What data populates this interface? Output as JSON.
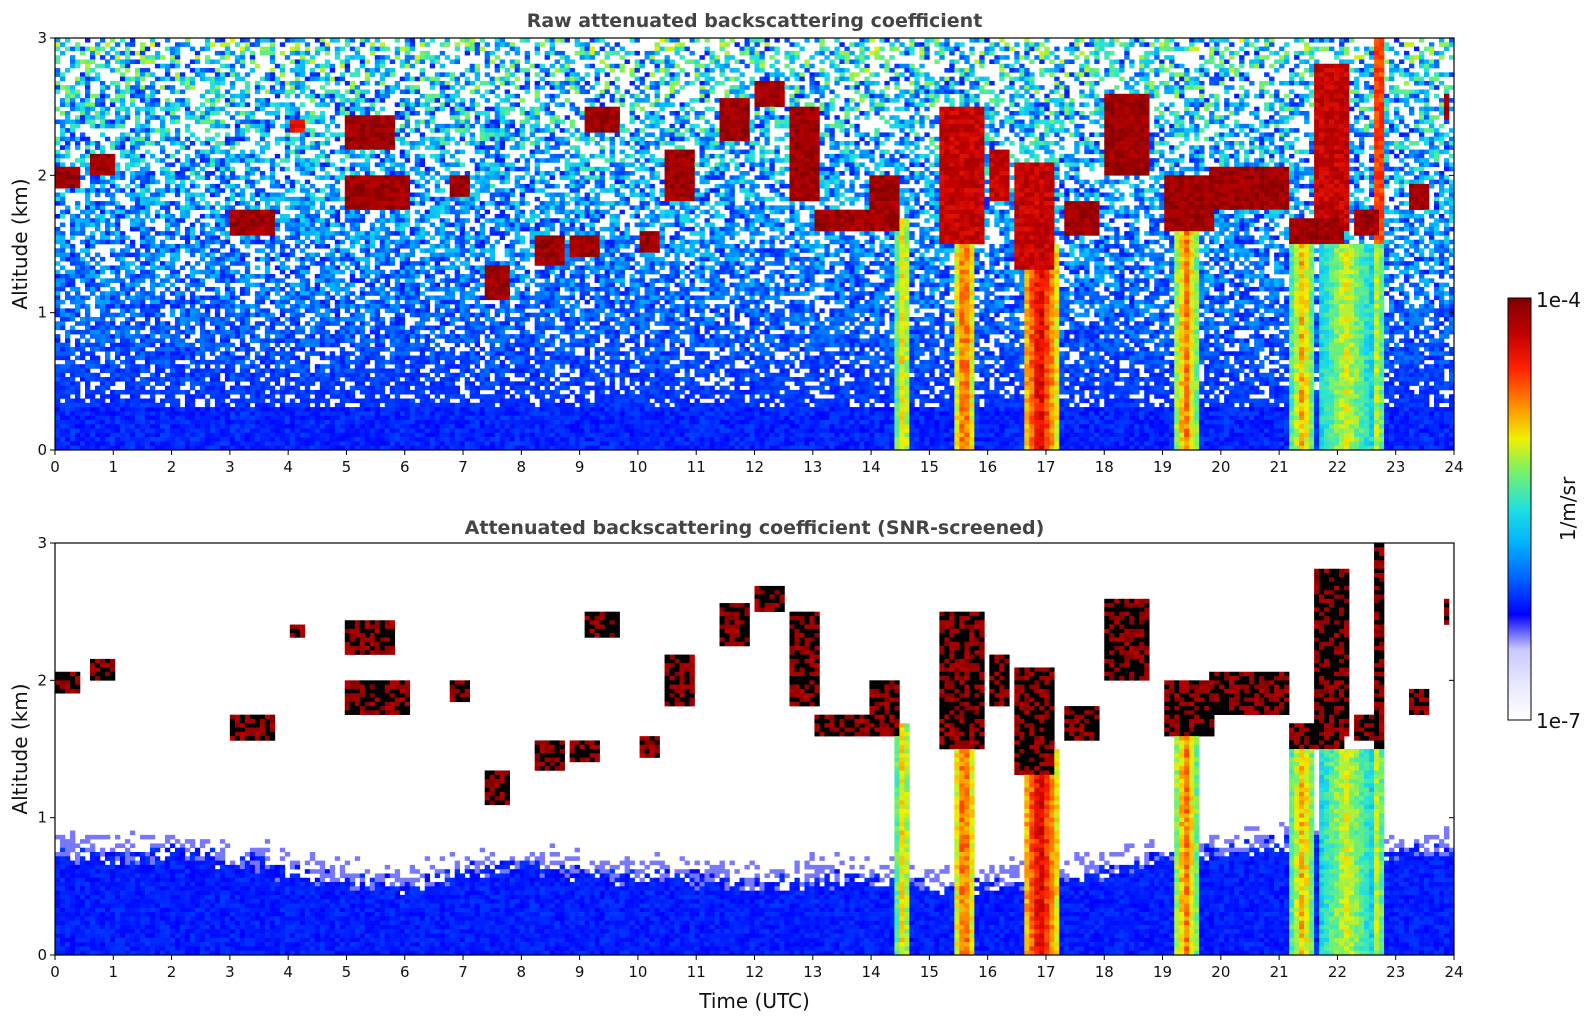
{
  "colors": {
    "colormap": [
      "#ffffff",
      "#e8e8ff",
      "#c8c8ff",
      "#0000ff",
      "#0060ff",
      "#00b0ff",
      "#20e0e0",
      "#70f070",
      "#f0f000",
      "#ff8800",
      "#ff2000",
      "#c00000",
      "#800000"
    ]
  },
  "colorbar": {
    "max_label": "1e-4",
    "min_label": "1e-7",
    "unit_label": "1/m/sr",
    "scale": "log"
  },
  "chart_data": [
    {
      "type": "heatmap",
      "title": "Raw attenuated backscattering coefficient",
      "xlabel": "",
      "ylabel": "Altitude (km)",
      "xlim": [
        0,
        24
      ],
      "ylim": [
        0,
        3
      ],
      "x_ticks": [
        "0",
        "1",
        "2",
        "3",
        "4",
        "5",
        "6",
        "7",
        "8",
        "9",
        "10",
        "11",
        "12",
        "13",
        "14",
        "15",
        "16",
        "17",
        "18",
        "19",
        "20",
        "21",
        "22",
        "23",
        "24"
      ],
      "y_ticks": [
        "0",
        "1",
        "2",
        "3"
      ],
      "grid": false,
      "background_noise": "high",
      "cloud_features": [
        {
          "x_start": 0.0,
          "x_end": 0.4,
          "alt_bottom": 1.9,
          "alt_top": 2.05,
          "level": 1.0
        },
        {
          "x_start": 0.6,
          "x_end": 1.0,
          "alt_bottom": 2.0,
          "alt_top": 2.15,
          "level": 1.0
        },
        {
          "x_start": 3.0,
          "x_end": 3.8,
          "alt_bottom": 1.55,
          "alt_top": 1.75,
          "level": 1.0
        },
        {
          "x_start": 4.0,
          "x_end": 4.3,
          "alt_bottom": 2.3,
          "alt_top": 2.4,
          "level": 0.9
        },
        {
          "x_start": 5.0,
          "x_end": 5.8,
          "alt_bottom": 2.2,
          "alt_top": 2.45,
          "level": 1.0
        },
        {
          "x_start": 5.0,
          "x_end": 6.1,
          "alt_bottom": 1.75,
          "alt_top": 2.0,
          "level": 1.0
        },
        {
          "x_start": 6.8,
          "x_end": 7.1,
          "alt_bottom": 1.85,
          "alt_top": 2.0,
          "level": 1.0
        },
        {
          "x_start": 7.4,
          "x_end": 7.8,
          "alt_bottom": 1.1,
          "alt_top": 1.35,
          "level": 1.0
        },
        {
          "x_start": 8.2,
          "x_end": 8.7,
          "alt_bottom": 1.35,
          "alt_top": 1.55,
          "level": 1.0
        },
        {
          "x_start": 8.8,
          "x_end": 9.3,
          "alt_bottom": 1.4,
          "alt_top": 1.55,
          "level": 1.0
        },
        {
          "x_start": 9.1,
          "x_end": 9.7,
          "alt_bottom": 2.3,
          "alt_top": 2.5,
          "level": 1.0
        },
        {
          "x_start": 10.0,
          "x_end": 10.4,
          "alt_bottom": 1.45,
          "alt_top": 1.6,
          "level": 1.0
        },
        {
          "x_start": 10.5,
          "x_end": 11.0,
          "alt_bottom": 1.8,
          "alt_top": 2.2,
          "level": 1.0
        },
        {
          "x_start": 11.4,
          "x_end": 11.9,
          "alt_bottom": 2.25,
          "alt_top": 2.55,
          "level": 1.0
        },
        {
          "x_start": 12.0,
          "x_end": 12.5,
          "alt_bottom": 2.5,
          "alt_top": 2.7,
          "level": 1.0
        },
        {
          "x_start": 12.6,
          "x_end": 13.1,
          "alt_bottom": 1.8,
          "alt_top": 2.5,
          "level": 1.0
        },
        {
          "x_start": 13.0,
          "x_end": 14.0,
          "alt_bottom": 1.6,
          "alt_top": 1.75,
          "level": 1.0
        },
        {
          "x_start": 14.0,
          "x_end": 14.5,
          "alt_bottom": 1.6,
          "alt_top": 2.0,
          "level": 1.0
        },
        {
          "x_start": 15.2,
          "x_end": 15.9,
          "alt_bottom": 1.5,
          "alt_top": 2.5,
          "level": 0.95
        },
        {
          "x_start": 16.0,
          "x_end": 16.4,
          "alt_bottom": 1.8,
          "alt_top": 2.2,
          "level": 0.95
        },
        {
          "x_start": 16.5,
          "x_end": 17.1,
          "alt_bottom": 1.3,
          "alt_top": 2.1,
          "level": 0.95
        },
        {
          "x_start": 17.3,
          "x_end": 17.9,
          "alt_bottom": 1.55,
          "alt_top": 1.8,
          "level": 1.0
        },
        {
          "x_start": 18.0,
          "x_end": 18.8,
          "alt_bottom": 2.0,
          "alt_top": 2.6,
          "level": 1.0
        },
        {
          "x_start": 19.0,
          "x_end": 19.9,
          "alt_bottom": 1.6,
          "alt_top": 2.0,
          "level": 1.0
        },
        {
          "x_start": 19.8,
          "x_end": 21.2,
          "alt_bottom": 1.75,
          "alt_top": 2.05,
          "level": 1.0
        },
        {
          "x_start": 21.2,
          "x_end": 22.1,
          "alt_bottom": 1.5,
          "alt_top": 1.7,
          "level": 1.0
        },
        {
          "x_start": 21.6,
          "x_end": 22.2,
          "alt_bottom": 1.6,
          "alt_top": 2.8,
          "level": 0.95
        },
        {
          "x_start": 22.3,
          "x_end": 22.7,
          "alt_bottom": 1.55,
          "alt_top": 1.75,
          "level": 1.0
        },
        {
          "x_start": 22.6,
          "x_end": 22.8,
          "alt_bottom": 1.5,
          "alt_top": 3.0,
          "level": 0.85
        },
        {
          "x_start": 23.2,
          "x_end": 23.6,
          "alt_bottom": 1.75,
          "alt_top": 1.95,
          "level": 1.0
        },
        {
          "x_start": 23.8,
          "x_end": 23.9,
          "alt_bottom": 2.4,
          "alt_top": 2.6,
          "level": 1.0
        }
      ],
      "precipitation_columns": [
        {
          "x_start": 14.4,
          "x_end": 14.7,
          "alt_top": 1.7,
          "level": 0.75
        },
        {
          "x_start": 15.4,
          "x_end": 15.8,
          "alt_top": 1.7,
          "level": 0.85
        },
        {
          "x_start": 16.6,
          "x_end": 17.2,
          "alt_top": 1.5,
          "level": 0.95
        },
        {
          "x_start": 19.2,
          "x_end": 19.6,
          "alt_top": 1.6,
          "level": 0.82
        },
        {
          "x_start": 21.2,
          "x_end": 21.6,
          "alt_top": 1.5,
          "level": 0.78
        },
        {
          "x_start": 21.7,
          "x_end": 22.6,
          "alt_top": 1.5,
          "level": 0.7
        },
        {
          "x_start": 22.6,
          "x_end": 22.8,
          "alt_top": 1.5,
          "level": 0.72
        }
      ]
    },
    {
      "type": "heatmap",
      "title": "Attenuated backscattering coefficient (SNR-screened)",
      "xlabel": "Time (UTC)",
      "ylabel": "Altitude (km)",
      "xlim": [
        0,
        24
      ],
      "ylim": [
        0,
        3
      ],
      "x_ticks": [
        "0",
        "1",
        "2",
        "3",
        "4",
        "5",
        "6",
        "7",
        "8",
        "9",
        "10",
        "11",
        "12",
        "13",
        "14",
        "15",
        "16",
        "17",
        "18",
        "19",
        "20",
        "21",
        "22",
        "23",
        "24"
      ],
      "y_ticks": [
        "0",
        "1",
        "2",
        "3"
      ],
      "grid": false,
      "background_noise": "screened",
      "cloud_color": "black",
      "boundary_layer_top_km": [
        [
          0,
          0.75
        ],
        [
          1,
          0.7
        ],
        [
          2,
          0.75
        ],
        [
          3,
          0.7
        ],
        [
          4,
          0.6
        ],
        [
          5,
          0.55
        ],
        [
          6,
          0.5
        ],
        [
          7,
          0.6
        ],
        [
          8,
          0.65
        ],
        [
          9,
          0.6
        ],
        [
          10,
          0.55
        ],
        [
          11,
          0.55
        ],
        [
          12,
          0.5
        ],
        [
          13,
          0.55
        ],
        [
          14,
          0.55
        ],
        [
          15,
          0.5
        ],
        [
          16,
          0.5
        ],
        [
          17,
          0.55
        ],
        [
          18,
          0.6
        ],
        [
          19,
          0.7
        ],
        [
          20,
          0.75
        ],
        [
          21,
          0.8
        ],
        [
          22,
          0.8
        ],
        [
          23,
          0.75
        ],
        [
          24,
          0.75
        ]
      ]
    }
  ]
}
